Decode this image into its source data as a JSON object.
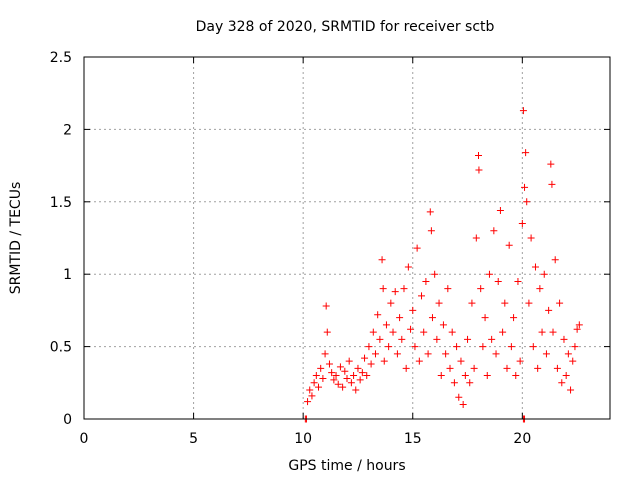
{
  "chart_data": {
    "type": "scatter",
    "title": "Day 328 of 2020, SRMTID for receiver sctb",
    "xlabel": "GPS time / hours",
    "ylabel": "SRMTID / TECUs",
    "xlim": [
      0,
      24.0
    ],
    "ylim": [
      0,
      2.5
    ],
    "xticks": [
      0,
      5,
      10,
      15,
      20
    ],
    "xtick_labels": [
      "0",
      "5",
      "10",
      "15",
      "20"
    ],
    "yticks": [
      0,
      0.5,
      1,
      1.5,
      2,
      2.5
    ],
    "ytick_labels": [
      "0",
      "0.5",
      "1",
      "1.5",
      "2",
      "2.5"
    ],
    "grid": true,
    "marker": "+",
    "color": "#ff0000",
    "series": [
      {
        "name": "SRMTID",
        "points": [
          [
            10.1,
            0.0
          ],
          [
            10.15,
            0.0
          ],
          [
            20.05,
            0.0
          ],
          [
            20.1,
            0.0
          ],
          [
            10.2,
            0.12
          ],
          [
            10.3,
            0.2
          ],
          [
            10.4,
            0.16
          ],
          [
            10.5,
            0.25
          ],
          [
            10.6,
            0.3
          ],
          [
            10.7,
            0.22
          ],
          [
            10.8,
            0.35
          ],
          [
            10.9,
            0.28
          ],
          [
            11.0,
            0.45
          ],
          [
            11.05,
            0.78
          ],
          [
            11.1,
            0.6
          ],
          [
            11.2,
            0.38
          ],
          [
            11.3,
            0.32
          ],
          [
            11.4,
            0.27
          ],
          [
            11.5,
            0.3
          ],
          [
            11.6,
            0.24
          ],
          [
            11.7,
            0.36
          ],
          [
            11.8,
            0.22
          ],
          [
            11.9,
            0.33
          ],
          [
            12.0,
            0.28
          ],
          [
            12.1,
            0.4
          ],
          [
            12.2,
            0.25
          ],
          [
            12.3,
            0.3
          ],
          [
            12.4,
            0.2
          ],
          [
            12.5,
            0.35
          ],
          [
            12.6,
            0.27
          ],
          [
            12.7,
            0.32
          ],
          [
            12.8,
            0.42
          ],
          [
            12.9,
            0.3
          ],
          [
            13.0,
            0.5
          ],
          [
            13.1,
            0.38
          ],
          [
            13.2,
            0.6
          ],
          [
            13.3,
            0.45
          ],
          [
            13.4,
            0.72
          ],
          [
            13.5,
            0.55
          ],
          [
            13.6,
            1.1
          ],
          [
            13.65,
            0.9
          ],
          [
            13.7,
            0.4
          ],
          [
            13.8,
            0.65
          ],
          [
            13.9,
            0.5
          ],
          [
            14.0,
            0.8
          ],
          [
            14.1,
            0.6
          ],
          [
            14.2,
            0.88
          ],
          [
            14.3,
            0.45
          ],
          [
            14.4,
            0.7
          ],
          [
            14.5,
            0.55
          ],
          [
            14.6,
            0.9
          ],
          [
            14.7,
            0.35
          ],
          [
            14.8,
            1.05
          ],
          [
            14.9,
            0.62
          ],
          [
            15.0,
            0.75
          ],
          [
            15.1,
            0.5
          ],
          [
            15.2,
            1.18
          ],
          [
            15.3,
            0.4
          ],
          [
            15.4,
            0.85
          ],
          [
            15.5,
            0.6
          ],
          [
            15.6,
            0.95
          ],
          [
            15.7,
            0.45
          ],
          [
            15.8,
            1.43
          ],
          [
            15.85,
            1.3
          ],
          [
            15.9,
            0.7
          ],
          [
            16.0,
            1.0
          ],
          [
            16.1,
            0.55
          ],
          [
            16.2,
            0.8
          ],
          [
            16.3,
            0.3
          ],
          [
            16.4,
            0.65
          ],
          [
            16.5,
            0.45
          ],
          [
            16.6,
            0.9
          ],
          [
            16.7,
            0.35
          ],
          [
            16.8,
            0.6
          ],
          [
            16.9,
            0.25
          ],
          [
            17.0,
            0.5
          ],
          [
            17.1,
            0.15
          ],
          [
            17.2,
            0.4
          ],
          [
            17.3,
            0.1
          ],
          [
            17.4,
            0.3
          ],
          [
            17.5,
            0.55
          ],
          [
            17.6,
            0.25
          ],
          [
            17.7,
            0.8
          ],
          [
            17.8,
            0.35
          ],
          [
            17.9,
            1.25
          ],
          [
            18.0,
            1.82
          ],
          [
            18.02,
            1.72
          ],
          [
            18.1,
            0.9
          ],
          [
            18.2,
            0.5
          ],
          [
            18.3,
            0.7
          ],
          [
            18.4,
            0.3
          ],
          [
            18.5,
            1.0
          ],
          [
            18.6,
            0.55
          ],
          [
            18.7,
            1.3
          ],
          [
            18.8,
            0.45
          ],
          [
            18.9,
            0.95
          ],
          [
            19.0,
            1.44
          ],
          [
            19.1,
            0.6
          ],
          [
            19.2,
            0.8
          ],
          [
            19.3,
            0.35
          ],
          [
            19.4,
            1.2
          ],
          [
            19.5,
            0.5
          ],
          [
            19.6,
            0.7
          ],
          [
            19.7,
            0.3
          ],
          [
            19.8,
            0.95
          ],
          [
            19.9,
            0.4
          ],
          [
            20.0,
            1.35
          ],
          [
            20.05,
            2.13
          ],
          [
            20.1,
            1.6
          ],
          [
            20.15,
            1.84
          ],
          [
            20.2,
            1.5
          ],
          [
            20.3,
            0.8
          ],
          [
            20.4,
            1.25
          ],
          [
            20.5,
            0.5
          ],
          [
            20.6,
            1.05
          ],
          [
            20.7,
            0.35
          ],
          [
            20.8,
            0.9
          ],
          [
            20.9,
            0.6
          ],
          [
            21.0,
            1.0
          ],
          [
            21.1,
            0.45
          ],
          [
            21.2,
            0.75
          ],
          [
            21.3,
            1.76
          ],
          [
            21.35,
            1.62
          ],
          [
            21.4,
            0.6
          ],
          [
            21.5,
            1.1
          ],
          [
            21.6,
            0.35
          ],
          [
            21.7,
            0.8
          ],
          [
            21.8,
            0.25
          ],
          [
            21.9,
            0.55
          ],
          [
            22.0,
            0.3
          ],
          [
            22.1,
            0.45
          ],
          [
            22.2,
            0.2
          ],
          [
            22.3,
            0.4
          ],
          [
            22.4,
            0.5
          ],
          [
            22.5,
            0.62
          ],
          [
            22.6,
            0.65
          ]
        ]
      }
    ]
  }
}
